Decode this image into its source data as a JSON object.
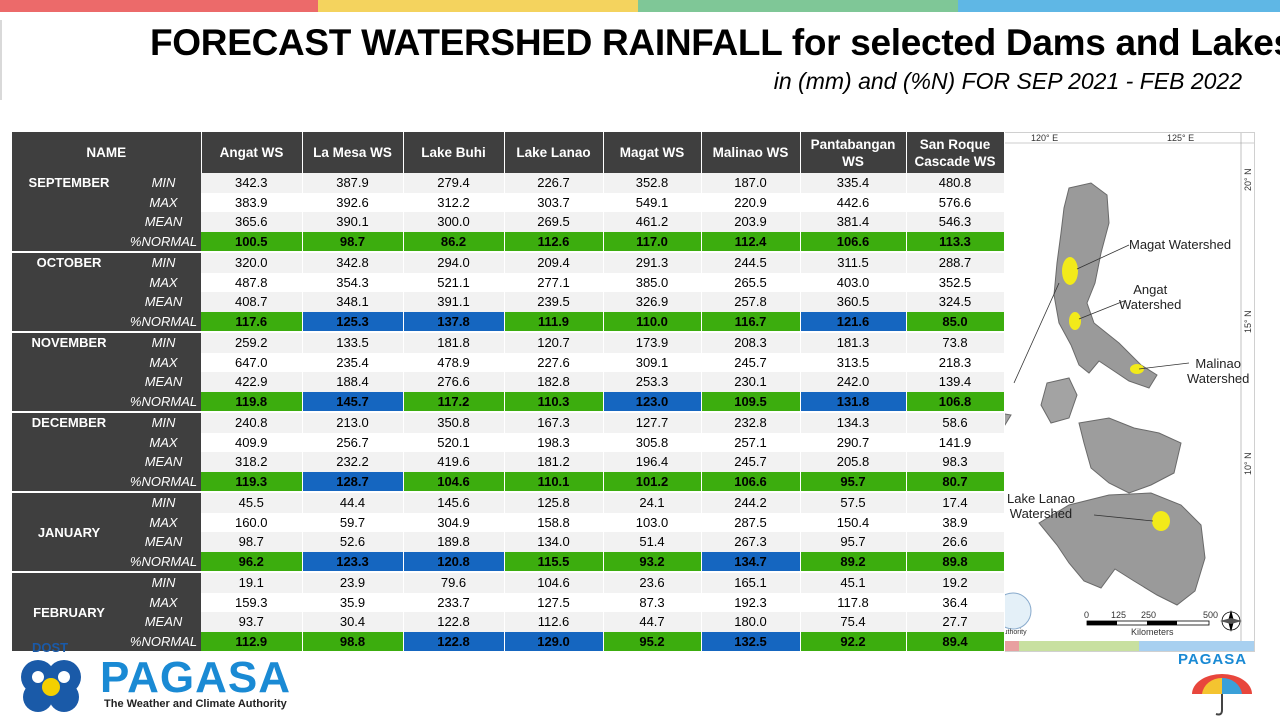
{
  "colors": {
    "topbar": [
      "#ec6a6a",
      "#f4d35e",
      "#7fc797",
      "#5fb7e5"
    ],
    "header_bg": "#3f3f3f",
    "normal_green": "#3cad0e",
    "normal_blue": "#1566c0"
  },
  "title": "FORECAST WATERSHED RAINFALL  for selected Dams and Lakes",
  "subtitle": "in (mm) and (%N) FOR SEP 2021 - FEB 2022",
  "table": {
    "name_header": "NAME",
    "columns": [
      "Angat WS",
      "La Mesa WS",
      "Lake Buhi",
      "Lake Lanao",
      "Magat WS",
      "Malinao WS",
      "Pantabangan WS",
      "San Roque Cascade WS"
    ],
    "stat_labels": [
      "MIN",
      "MAX",
      "MEAN",
      "%NORMAL"
    ],
    "months": [
      {
        "name": "SEPTEMBER",
        "min": [
          "342.3",
          "387.9",
          "279.4",
          "226.7",
          "352.8",
          "187.0",
          "335.4",
          "480.8"
        ],
        "max": [
          "383.9",
          "392.6",
          "312.2",
          "303.7",
          "549.1",
          "220.9",
          "442.6",
          "576.6"
        ],
        "mean": [
          "365.6",
          "390.1",
          "300.0",
          "269.5",
          "461.2",
          "203.9",
          "381.4",
          "546.3"
        ],
        "normal": [
          "100.5",
          "98.7",
          "86.2",
          "112.6",
          "117.0",
          "112.4",
          "106.6",
          "113.3"
        ],
        "normal_class": [
          "green",
          "green",
          "green",
          "green",
          "green",
          "green",
          "green",
          "green"
        ]
      },
      {
        "name": "OCTOBER",
        "min": [
          "320.0",
          "342.8",
          "294.0",
          "209.4",
          "291.3",
          "244.5",
          "311.5",
          "288.7"
        ],
        "max": [
          "487.8",
          "354.3",
          "521.1",
          "277.1",
          "385.0",
          "265.5",
          "403.0",
          "352.5"
        ],
        "mean": [
          "408.7",
          "348.1",
          "391.1",
          "239.5",
          "326.9",
          "257.8",
          "360.5",
          "324.5"
        ],
        "normal": [
          "117.6",
          "125.3",
          "137.8",
          "111.9",
          "110.0",
          "116.7",
          "121.6",
          "85.0"
        ],
        "normal_class": [
          "green",
          "blue",
          "blue",
          "green",
          "green",
          "green",
          "blue",
          "green"
        ]
      },
      {
        "name": "NOVEMBER",
        "min": [
          "259.2",
          "133.5",
          "181.8",
          "120.7",
          "173.9",
          "208.3",
          "181.3",
          "73.8"
        ],
        "max": [
          "647.0",
          "235.4",
          "478.9",
          "227.6",
          "309.1",
          "245.7",
          "313.5",
          "218.3"
        ],
        "mean": [
          "422.9",
          "188.4",
          "276.6",
          "182.8",
          "253.3",
          "230.1",
          "242.0",
          "139.4"
        ],
        "normal": [
          "119.8",
          "145.7",
          "117.2",
          "110.3",
          "123.0",
          "109.5",
          "131.8",
          "106.8"
        ],
        "normal_class": [
          "green",
          "blue",
          "green",
          "green",
          "blue",
          "green",
          "blue",
          "green"
        ]
      },
      {
        "name": "DECEMBER",
        "min": [
          "240.8",
          "213.0",
          "350.8",
          "167.3",
          "127.7",
          "232.8",
          "134.3",
          "58.6"
        ],
        "max": [
          "409.9",
          "256.7",
          "520.1",
          "198.3",
          "305.8",
          "257.1",
          "290.7",
          "141.9"
        ],
        "mean": [
          "318.2",
          "232.2",
          "419.6",
          "181.2",
          "196.4",
          "245.7",
          "205.8",
          "98.3"
        ],
        "normal": [
          "119.3",
          "128.7",
          "104.6",
          "110.1",
          "101.2",
          "106.6",
          "95.7",
          "80.7"
        ],
        "normal_class": [
          "green",
          "blue",
          "green",
          "green",
          "green",
          "green",
          "green",
          "green"
        ]
      },
      {
        "name": "JANUARY",
        "min": [
          "45.5",
          "44.4",
          "145.6",
          "125.8",
          "24.1",
          "244.2",
          "57.5",
          "17.4"
        ],
        "max": [
          "160.0",
          "59.7",
          "304.9",
          "158.8",
          "103.0",
          "287.5",
          "150.4",
          "38.9"
        ],
        "mean": [
          "98.7",
          "52.6",
          "189.8",
          "134.0",
          "51.4",
          "267.3",
          "95.7",
          "26.6"
        ],
        "normal": [
          "96.2",
          "123.3",
          "120.8",
          "115.5",
          "93.2",
          "134.7",
          "89.2",
          "89.8"
        ],
        "normal_class": [
          "green",
          "blue",
          "blue",
          "green",
          "green",
          "blue",
          "green",
          "green"
        ]
      },
      {
        "name": "FEBRUARY",
        "min": [
          "19.1",
          "23.9",
          "79.6",
          "104.6",
          "23.6",
          "165.1",
          "45.1",
          "19.2"
        ],
        "max": [
          "159.3",
          "35.9",
          "233.7",
          "127.5",
          "87.3",
          "192.3",
          "117.8",
          "36.4"
        ],
        "mean": [
          "93.7",
          "30.4",
          "122.8",
          "112.6",
          "44.7",
          "180.0",
          "75.4",
          "27.7"
        ],
        "normal": [
          "112.9",
          "98.8",
          "122.8",
          "129.0",
          "95.2",
          "132.5",
          "92.2",
          "89.4"
        ],
        "normal_class": [
          "green",
          "green",
          "blue",
          "blue",
          "green",
          "blue",
          "green",
          "green"
        ]
      }
    ]
  },
  "map": {
    "labels": {
      "magat": "Magat Watershed",
      "angat": "Angat\nWatershed",
      "malinao": "Malinao\nWatershed",
      "lanao": "Lake Lanao\nWatershed",
      "cascade": "ascade",
      "gan": "gan",
      "ed": "ed",
      "n": "n"
    },
    "coords": {
      "lon1": "120° E",
      "lon2": "125° E",
      "lat20": "20° N",
      "lat15": "15° N",
      "lat10": "10° N"
    },
    "scale": {
      "ticks": [
        "0",
        "125",
        "250",
        "500"
      ],
      "unit": "Kilometers"
    },
    "credit": "Authority"
  },
  "logos": {
    "dost": "DOST",
    "pagasa": "PAGASA",
    "tagline": "The Weather and Climate Authority",
    "pagasa_small": "PAGASA"
  }
}
